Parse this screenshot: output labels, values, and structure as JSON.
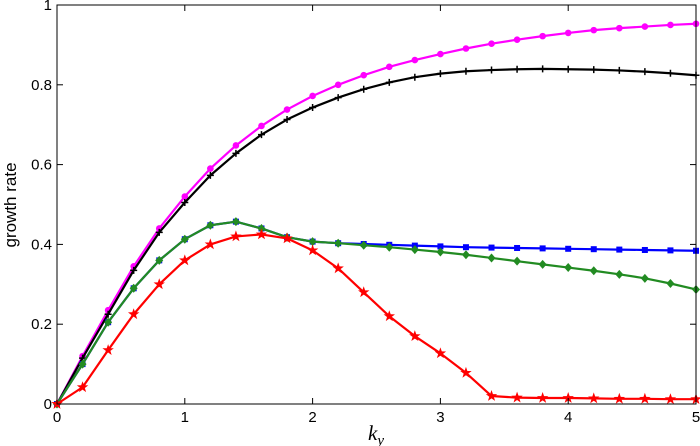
{
  "chart_data": {
    "type": "line",
    "xlabel": "k",
    "xlabel_sub": "y",
    "ylabel": "growth rate",
    "xlim": [
      0,
      5
    ],
    "ylim": [
      0,
      1
    ],
    "xticks": [
      0,
      1,
      2,
      3,
      4,
      5
    ],
    "xtick_labels": [
      "0",
      "1",
      "2",
      "3",
      "4",
      "5"
    ],
    "yticks": [
      0,
      0.2,
      0.4,
      0.6,
      0.8,
      1
    ],
    "ytick_labels": [
      "0",
      "0.2",
      "0.4",
      "0.6",
      "0.8",
      "1"
    ],
    "grid": false,
    "x": [
      0,
      0.2,
      0.4,
      0.6,
      0.8,
      1.0,
      1.2,
      1.4,
      1.6,
      1.8,
      2.0,
      2.2,
      2.4,
      2.6,
      2.8,
      3.0,
      3.2,
      3.4,
      3.6,
      3.8,
      4.0,
      4.2,
      4.4,
      4.6,
      4.8,
      5.0
    ],
    "series": [
      {
        "color": "#ff00ff",
        "marker": "circle",
        "values": [
          0.0,
          0.12,
          0.235,
          0.345,
          0.44,
          0.52,
          0.59,
          0.648,
          0.697,
          0.738,
          0.772,
          0.8,
          0.824,
          0.845,
          0.862,
          0.877,
          0.891,
          0.903,
          0.913,
          0.922,
          0.93,
          0.937,
          0.942,
          0.946,
          0.95,
          0.953
        ]
      },
      {
        "color": "#000000",
        "marker": "plus",
        "values": [
          0.0,
          0.115,
          0.225,
          0.335,
          0.43,
          0.505,
          0.573,
          0.628,
          0.675,
          0.713,
          0.743,
          0.768,
          0.789,
          0.806,
          0.819,
          0.828,
          0.834,
          0.837,
          0.839,
          0.84,
          0.839,
          0.838,
          0.836,
          0.833,
          0.829,
          0.824
        ]
      },
      {
        "color": "#0000ff",
        "marker": "square",
        "values": [
          0.0,
          0.1,
          0.205,
          0.29,
          0.36,
          0.413,
          0.448,
          0.457,
          0.44,
          0.418,
          0.407,
          0.403,
          0.401,
          0.399,
          0.397,
          0.395,
          0.393,
          0.392,
          0.391,
          0.39,
          0.389,
          0.388,
          0.387,
          0.386,
          0.385,
          0.384
        ]
      },
      {
        "color": "#228b22",
        "marker": "diamond",
        "values": [
          0.0,
          0.1,
          0.205,
          0.29,
          0.36,
          0.413,
          0.448,
          0.457,
          0.44,
          0.418,
          0.407,
          0.403,
          0.398,
          0.393,
          0.387,
          0.381,
          0.374,
          0.366,
          0.358,
          0.35,
          0.342,
          0.334,
          0.325,
          0.315,
          0.302,
          0.287
        ]
      },
      {
        "color": "#ff0000",
        "marker": "star",
        "values": [
          0.0,
          0.042,
          0.135,
          0.225,
          0.3,
          0.36,
          0.4,
          0.42,
          0.425,
          0.415,
          0.385,
          0.34,
          0.28,
          0.22,
          0.17,
          0.127,
          0.078,
          0.02,
          0.016,
          0.015,
          0.015,
          0.014,
          0.013,
          0.013,
          0.012,
          0.012
        ]
      }
    ]
  }
}
